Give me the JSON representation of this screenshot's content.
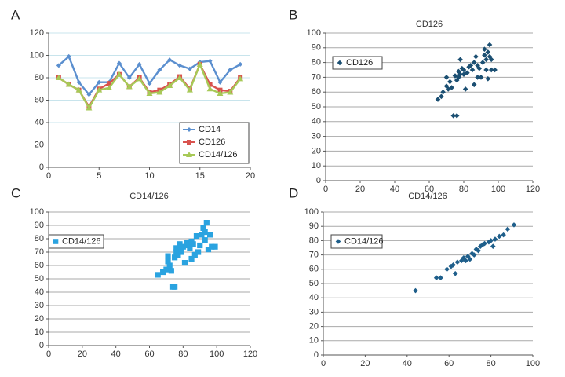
{
  "panels": [
    {
      "letter": "A",
      "type": "line",
      "title": "",
      "xlim": [
        0,
        20
      ],
      "ylim": [
        0,
        120
      ],
      "xticks": [
        0,
        5,
        10,
        15,
        20
      ],
      "yticks": [
        0,
        20,
        40,
        60,
        80,
        100,
        120
      ],
      "grid_color": "#c8e4ec",
      "legend": "bottom-right",
      "series": [
        {
          "name": "CD14",
          "color": "#5b8fcf",
          "marker": "diamond",
          "x": [
            1,
            2,
            3,
            4,
            5,
            6,
            7,
            8,
            9,
            10,
            11,
            12,
            13,
            14,
            15,
            16,
            17,
            18,
            19
          ],
          "y": [
            91,
            99,
            76,
            65,
            76,
            76,
            93,
            80,
            92,
            75,
            87,
            96,
            91,
            88,
            94,
            95,
            76,
            87,
            92
          ]
        },
        {
          "name": "CD126",
          "color": "#d9534f",
          "marker": "square",
          "x": [
            1,
            2,
            3,
            4,
            5,
            6,
            7,
            8,
            9,
            10,
            11,
            12,
            13,
            14,
            15,
            16,
            17,
            18,
            19
          ],
          "y": [
            80,
            74,
            69,
            54,
            70,
            75,
            83,
            72,
            80,
            67,
            69,
            74,
            81,
            70,
            92,
            74,
            69,
            68,
            80
          ]
        },
        {
          "name": "CD14/126",
          "color": "#a7c957",
          "marker": "triangle",
          "x": [
            1,
            2,
            3,
            4,
            5,
            6,
            7,
            8,
            9,
            10,
            11,
            12,
            13,
            14,
            15,
            16,
            17,
            18,
            19
          ],
          "y": [
            80,
            74,
            69,
            53,
            69,
            71,
            83,
            72,
            79,
            66,
            67,
            73,
            80,
            69,
            92,
            70,
            66,
            67,
            79
          ]
        }
      ]
    },
    {
      "letter": "B",
      "type": "scatter",
      "title": "CD126",
      "xlim": [
        0,
        120
      ],
      "ylim": [
        0,
        100
      ],
      "xticks": [
        0,
        20,
        40,
        60,
        80,
        100,
        120
      ],
      "yticks": [
        0,
        10,
        20,
        30,
        40,
        50,
        60,
        70,
        80,
        90,
        100
      ],
      "grid_color": "#a9a9a9",
      "legend": "left",
      "series": [
        {
          "name": "CD126",
          "color": "#1b4f72",
          "marker": "diamond",
          "points": [
            [
              65,
              55
            ],
            [
              67,
              57
            ],
            [
              68,
              60
            ],
            [
              70,
              64
            ],
            [
              71,
              62
            ],
            [
              70,
              70
            ],
            [
              72,
              67
            ],
            [
              73,
              63
            ],
            [
              74,
              44
            ],
            [
              76,
              44
            ],
            [
              75,
              71
            ],
            [
              76,
              68
            ],
            [
              77,
              70
            ],
            [
              77,
              74
            ],
            [
              78,
              72
            ],
            [
              78,
              82
            ],
            [
              79,
              76
            ],
            [
              80,
              75
            ],
            [
              80,
              72
            ],
            [
              81,
              62
            ],
            [
              82,
              73
            ],
            [
              83,
              77
            ],
            [
              84,
              78
            ],
            [
              85,
              75
            ],
            [
              86,
              80
            ],
            [
              86,
              65
            ],
            [
              87,
              84
            ],
            [
              88,
              70
            ],
            [
              88,
              78
            ],
            [
              89,
              76
            ],
            [
              90,
              70
            ],
            [
              91,
              80
            ],
            [
              92,
              85
            ],
            [
              92,
              89
            ],
            [
              93,
              82
            ],
            [
              93,
              75
            ],
            [
              94,
              87
            ],
            [
              94,
              69
            ],
            [
              95,
              92
            ],
            [
              95,
              84
            ],
            [
              96,
              75
            ],
            [
              96,
              82
            ],
            [
              98,
              75
            ]
          ]
        }
      ]
    },
    {
      "letter": "C",
      "type": "scatter",
      "title": "CD14/126",
      "xlim": [
        0,
        120
      ],
      "ylim": [
        0,
        100
      ],
      "xticks": [
        0,
        20,
        40,
        60,
        80,
        100,
        120
      ],
      "yticks": [
        0,
        10,
        20,
        30,
        40,
        50,
        60,
        70,
        80,
        90,
        100
      ],
      "grid_color": "#a9a9a9",
      "legend": "left",
      "series": [
        {
          "name": "CD14/126",
          "color": "#2aa3e0",
          "marker": "square",
          "points": [
            [
              65,
              53
            ],
            [
              68,
              55
            ],
            [
              70,
              57
            ],
            [
              71,
              63
            ],
            [
              71,
              67
            ],
            [
              72,
              60
            ],
            [
              73,
              56
            ],
            [
              74,
              44
            ],
            [
              75,
              44
            ],
            [
              75,
              66
            ],
            [
              76,
              70
            ],
            [
              76,
              73
            ],
            [
              77,
              68
            ],
            [
              78,
              76
            ],
            [
              78,
              72
            ],
            [
              79,
              70
            ],
            [
              80,
              74
            ],
            [
              81,
              62
            ],
            [
              82,
              77
            ],
            [
              83,
              75
            ],
            [
              84,
              73
            ],
            [
              85,
              65
            ],
            [
              85,
              78
            ],
            [
              86,
              76
            ],
            [
              87,
              68
            ],
            [
              88,
              82
            ],
            [
              89,
              70
            ],
            [
              90,
              75
            ],
            [
              91,
              83
            ],
            [
              92,
              88
            ],
            [
              93,
              85
            ],
            [
              93,
              79
            ],
            [
              94,
              92
            ],
            [
              95,
              72
            ],
            [
              96,
              83
            ],
            [
              97,
              74
            ],
            [
              99,
              74
            ]
          ]
        }
      ]
    },
    {
      "letter": "D",
      "type": "scatter",
      "title": "CD14/126",
      "xlim": [
        0,
        100
      ],
      "ylim": [
        0,
        100
      ],
      "xticks": [
        0,
        20,
        40,
        60,
        80,
        100
      ],
      "yticks": [
        0,
        10,
        20,
        30,
        40,
        50,
        60,
        70,
        80,
        90,
        100
      ],
      "grid_color": "#a9a9a9",
      "legend": "left",
      "series": [
        {
          "name": "CD14/126",
          "color": "#1f5f8b",
          "marker": "diamond",
          "points": [
            [
              44,
              45
            ],
            [
              54,
              54
            ],
            [
              56,
              54
            ],
            [
              59,
              60
            ],
            [
              61,
              62
            ],
            [
              62,
              63
            ],
            [
              63,
              57
            ],
            [
              64,
              65
            ],
            [
              66,
              66
            ],
            [
              67,
              68
            ],
            [
              68,
              66
            ],
            [
              69,
              69
            ],
            [
              70,
              67
            ],
            [
              71,
              71
            ],
            [
              72,
              70
            ],
            [
              73,
              74
            ],
            [
              74,
              73
            ],
            [
              75,
              76
            ],
            [
              76,
              77
            ],
            [
              77,
              78
            ],
            [
              79,
              79
            ],
            [
              80,
              80
            ],
            [
              81,
              76
            ],
            [
              82,
              81
            ],
            [
              84,
              83
            ],
            [
              86,
              84
            ],
            [
              88,
              88
            ],
            [
              91,
              91
            ]
          ]
        }
      ]
    }
  ]
}
